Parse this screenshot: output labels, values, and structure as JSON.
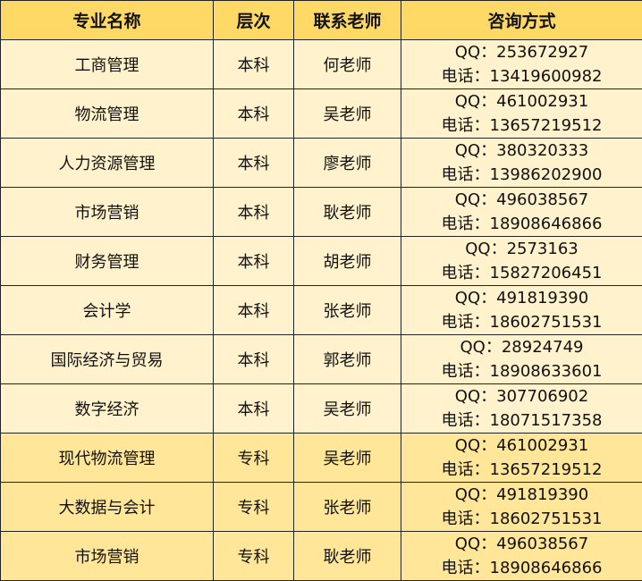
{
  "headers": [
    "专业名称",
    "层次",
    "联系老师",
    "咨询方式"
  ],
  "colors": {
    "header": "#FFD966",
    "undergrad_row": "#FFF2CC",
    "junior_row": "#FFE699"
  },
  "rows": [
    {
      "major": "工商管理",
      "level": "本科",
      "teacher": "何老师",
      "qq": "QQ：253672927",
      "phone": "电话：13419600982"
    },
    {
      "major": "物流管理",
      "level": "本科",
      "teacher": "吴老师",
      "qq": "QQ：461002931",
      "phone": "电话：13657219512"
    },
    {
      "major": "人力资源管理",
      "level": "本科",
      "teacher": "廖老师",
      "qq": "QQ：380320333",
      "phone": "电话：13986202900"
    },
    {
      "major": "市场营销",
      "level": "本科",
      "teacher": "耿老师",
      "qq": "QQ：496038567",
      "phone": "电话：18908646866"
    },
    {
      "major": "财务管理",
      "level": "本科",
      "teacher": "胡老师",
      "qq": "QQ：2573163",
      "phone": "电话：15827206451"
    },
    {
      "major": "会计学",
      "level": "本科",
      "teacher": "张老师",
      "qq": "QQ：491819390",
      "phone": "电话：18602751531"
    },
    {
      "major": "国际经济与贸易",
      "level": "本科",
      "teacher": "郭老师",
      "qq": "QQ：28924749",
      "phone": "电话：18908633601"
    },
    {
      "major": "数字经济",
      "level": "本科",
      "teacher": "吴老师",
      "qq": "QQ：307706902",
      "phone": "电话：18071517358"
    },
    {
      "major": "现代物流管理",
      "level": "专科",
      "teacher": "吴老师",
      "qq": "QQ：461002931",
      "phone": "电话：13657219512"
    },
    {
      "major": "大数据与会计",
      "level": "专科",
      "teacher": "张老师",
      "qq": "QQ：491819390",
      "phone": "电话：18602751531"
    },
    {
      "major": "市场营销",
      "level": "专科",
      "teacher": "耿老师",
      "qq": "QQ：496038567",
      "phone": "电话：18908646866"
    }
  ]
}
